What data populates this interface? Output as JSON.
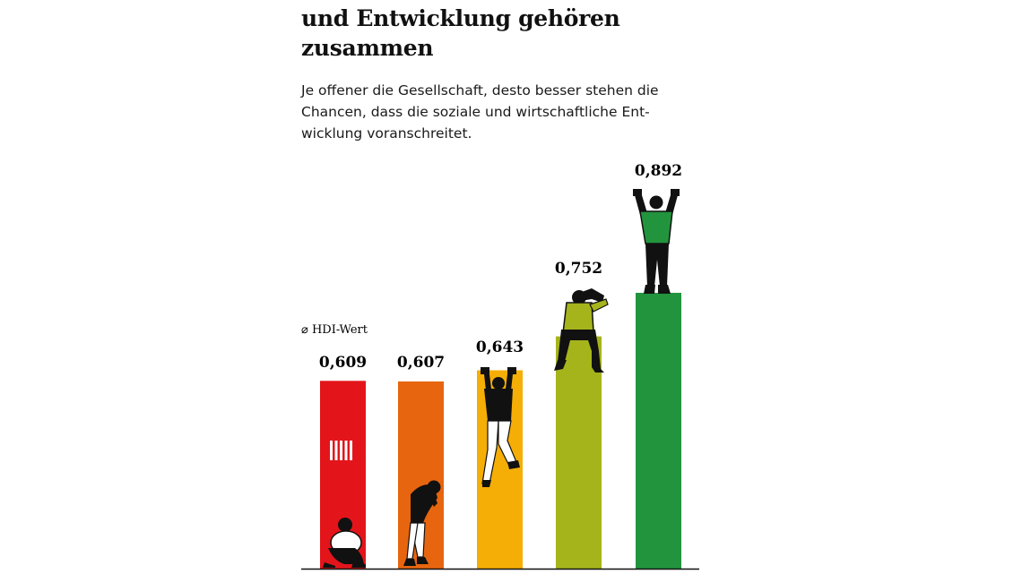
{
  "header": {
    "title_line1": "und Entwicklung gehören",
    "title_line2": "zusammen",
    "subtitle_line1": "Je offener die Gesellschaft, desto besser stehen die",
    "subtitle_line2": "Chancen, dass die soziale und wirtschaftliche Ent-",
    "subtitle_line3": "wicklung voranschreitet."
  },
  "chart_data": {
    "type": "bar",
    "title": "und Entwicklung gehören zusammen",
    "subtitle": "Je offener die Gesellschaft, desto besser stehen die Chancen, dass die soziale und wirtschaftliche Entwicklung voranschreitet.",
    "legend_label": "⌀ HDI-Wert",
    "values": [
      0.609,
      0.607,
      0.643,
      0.752,
      0.892
    ],
    "value_labels": [
      "0,609",
      "0,607",
      "0,643",
      "0,752",
      "0,892"
    ],
    "colors": [
      "#e3151a",
      "#e8650f",
      "#f5ae05",
      "#a6b41c",
      "#22943e"
    ],
    "figures": [
      "crouching-person",
      "bent-over-person",
      "climbing-person",
      "sitting-person-looking-out",
      "cheering-person"
    ]
  }
}
